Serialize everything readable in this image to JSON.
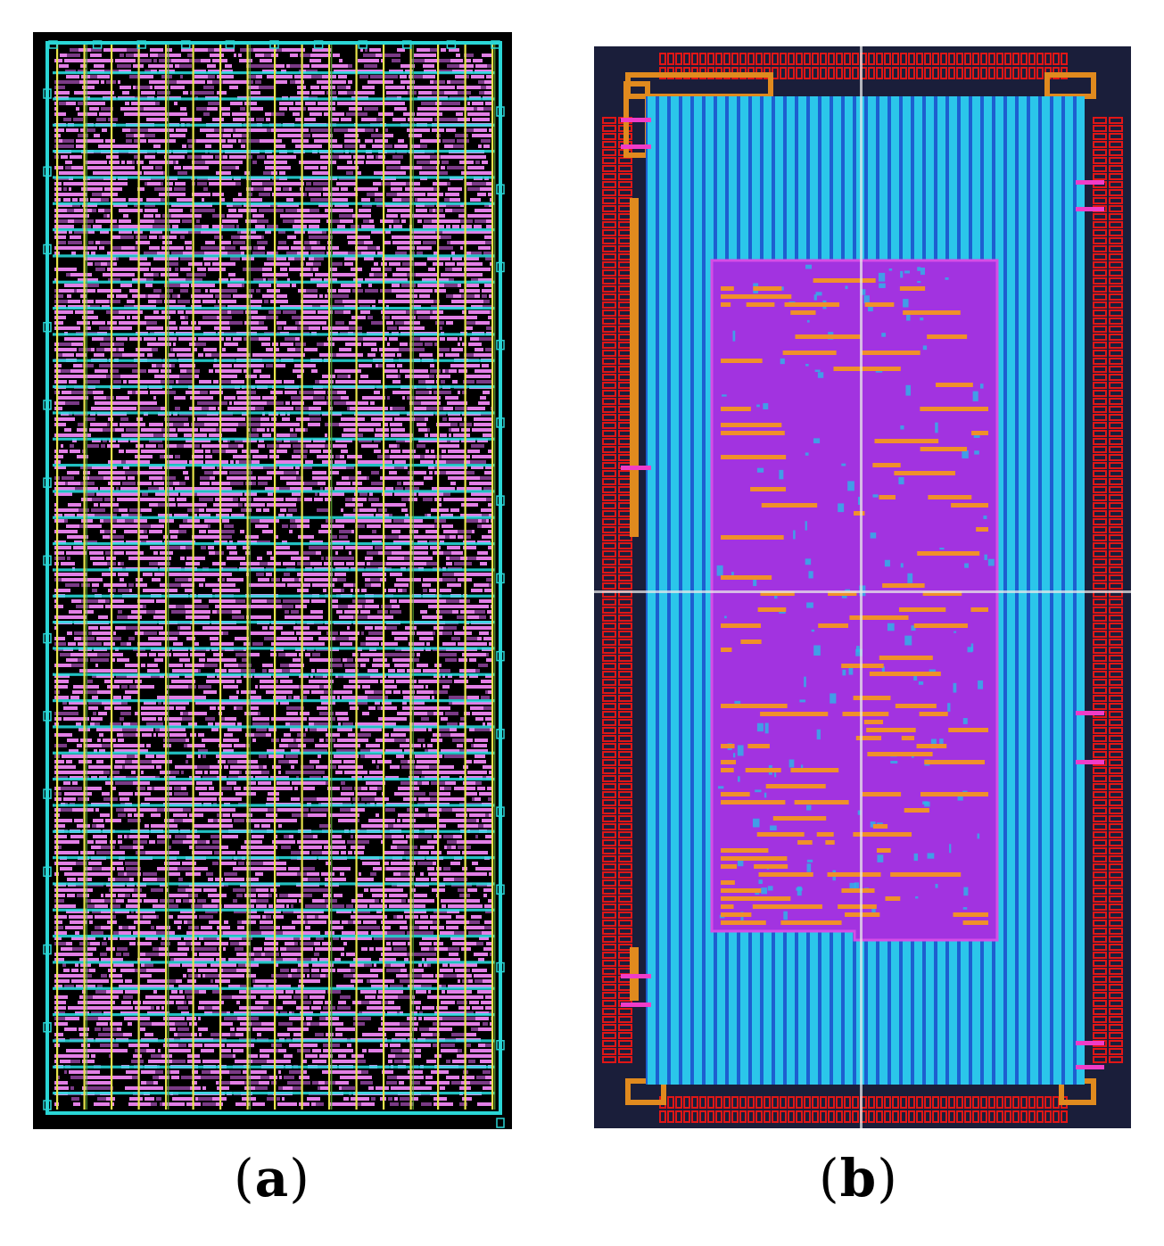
{
  "figure": {
    "panel_a": {
      "caption_open": "(",
      "caption_letter": "a",
      "caption_close": ")",
      "colors": {
        "background": "#000000",
        "cells": "#e27fe6",
        "cells_dark": "#7a3a86",
        "vertical_straps": "#e6e34a",
        "horizontal_rails": "#27e3e3",
        "border": "#2ad6d6"
      },
      "grid_columns": 16,
      "horizontal_rails": 40
    },
    "panel_b": {
      "caption_open": "(",
      "caption_letter": "b",
      "caption_close": ")",
      "colors": {
        "background": "#1a1e3a",
        "io_ring": "#e01616",
        "corner_pads": "#e08a1e",
        "power_stripes": "#2bc6ea",
        "stripe_gaps": "#1d5fd0",
        "core_logic": "#a233e0",
        "core_highlight": "#f0902a",
        "pins": "#f03cc8",
        "crosshair": "#e8e8e8"
      }
    }
  }
}
